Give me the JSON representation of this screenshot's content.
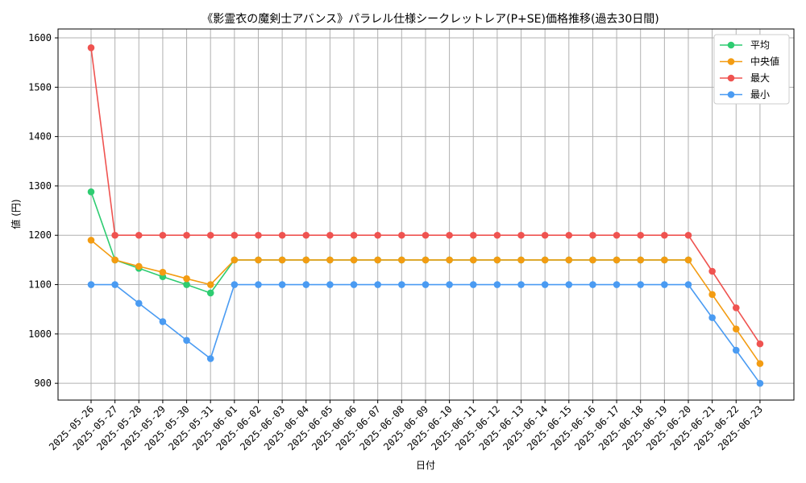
{
  "chart_data": {
    "type": "line",
    "title": "《影霊衣の魔剣士アバンス》パラレル仕様シークレットレア(P+SE)価格推移(過去30日間)",
    "xlabel": "日付",
    "ylabel": "値 (円)",
    "ylim": [
      866,
      1618
    ],
    "yticks": [
      900,
      1000,
      1100,
      1200,
      1300,
      1400,
      1500,
      1600
    ],
    "legend_position": "top-right",
    "grid": true,
    "categories": [
      "2025-05-26",
      "2025-05-27",
      "2025-05-28",
      "2025-05-29",
      "2025-05-30",
      "2025-05-31",
      "2025-06-01",
      "2025-06-02",
      "2025-06-03",
      "2025-06-04",
      "2025-06-05",
      "2025-06-06",
      "2025-06-07",
      "2025-06-08",
      "2025-06-09",
      "2025-06-10",
      "2025-06-11",
      "2025-06-12",
      "2025-06-13",
      "2025-06-14",
      "2025-06-15",
      "2025-06-16",
      "2025-06-17",
      "2025-06-18",
      "2025-06-19",
      "2025-06-20",
      "2025-06-21",
      "2025-06-22",
      "2025-06-23"
    ],
    "series": [
      {
        "name": "平均",
        "color": "#2ecc71",
        "values": [
          1288,
          1150,
          1133,
          1116,
          1100,
          1083,
          1150,
          1150,
          1150,
          1150,
          1150,
          1150,
          1150,
          1150,
          1150,
          1150,
          1150,
          1150,
          1150,
          1150,
          1150,
          1150,
          1150,
          1150,
          1150,
          1150,
          null,
          null,
          null
        ]
      },
      {
        "name": "中央値",
        "color": "#f39c12",
        "values": [
          1190,
          1150,
          1137,
          1125,
          1112,
          1100,
          1150,
          1150,
          1150,
          1150,
          1150,
          1150,
          1150,
          1150,
          1150,
          1150,
          1150,
          1150,
          1150,
          1150,
          1150,
          1150,
          1150,
          1150,
          1150,
          1150,
          1080,
          1010,
          940
        ]
      },
      {
        "name": "最大",
        "color": "#ef5350",
        "values": [
          1580,
          1200,
          1200,
          1200,
          1200,
          1200,
          1200,
          1200,
          1200,
          1200,
          1200,
          1200,
          1200,
          1200,
          1200,
          1200,
          1200,
          1200,
          1200,
          1200,
          1200,
          1200,
          1200,
          1200,
          1200,
          1200,
          1127,
          1053,
          980
        ]
      },
      {
        "name": "最小",
        "color": "#4a9bf2",
        "values": [
          1100,
          1100,
          1062,
          1025,
          987,
          950,
          1100,
          1100,
          1100,
          1100,
          1100,
          1100,
          1100,
          1100,
          1100,
          1100,
          1100,
          1100,
          1100,
          1100,
          1100,
          1100,
          1100,
          1100,
          1100,
          1100,
          1033,
          967,
          900
        ]
      }
    ]
  }
}
